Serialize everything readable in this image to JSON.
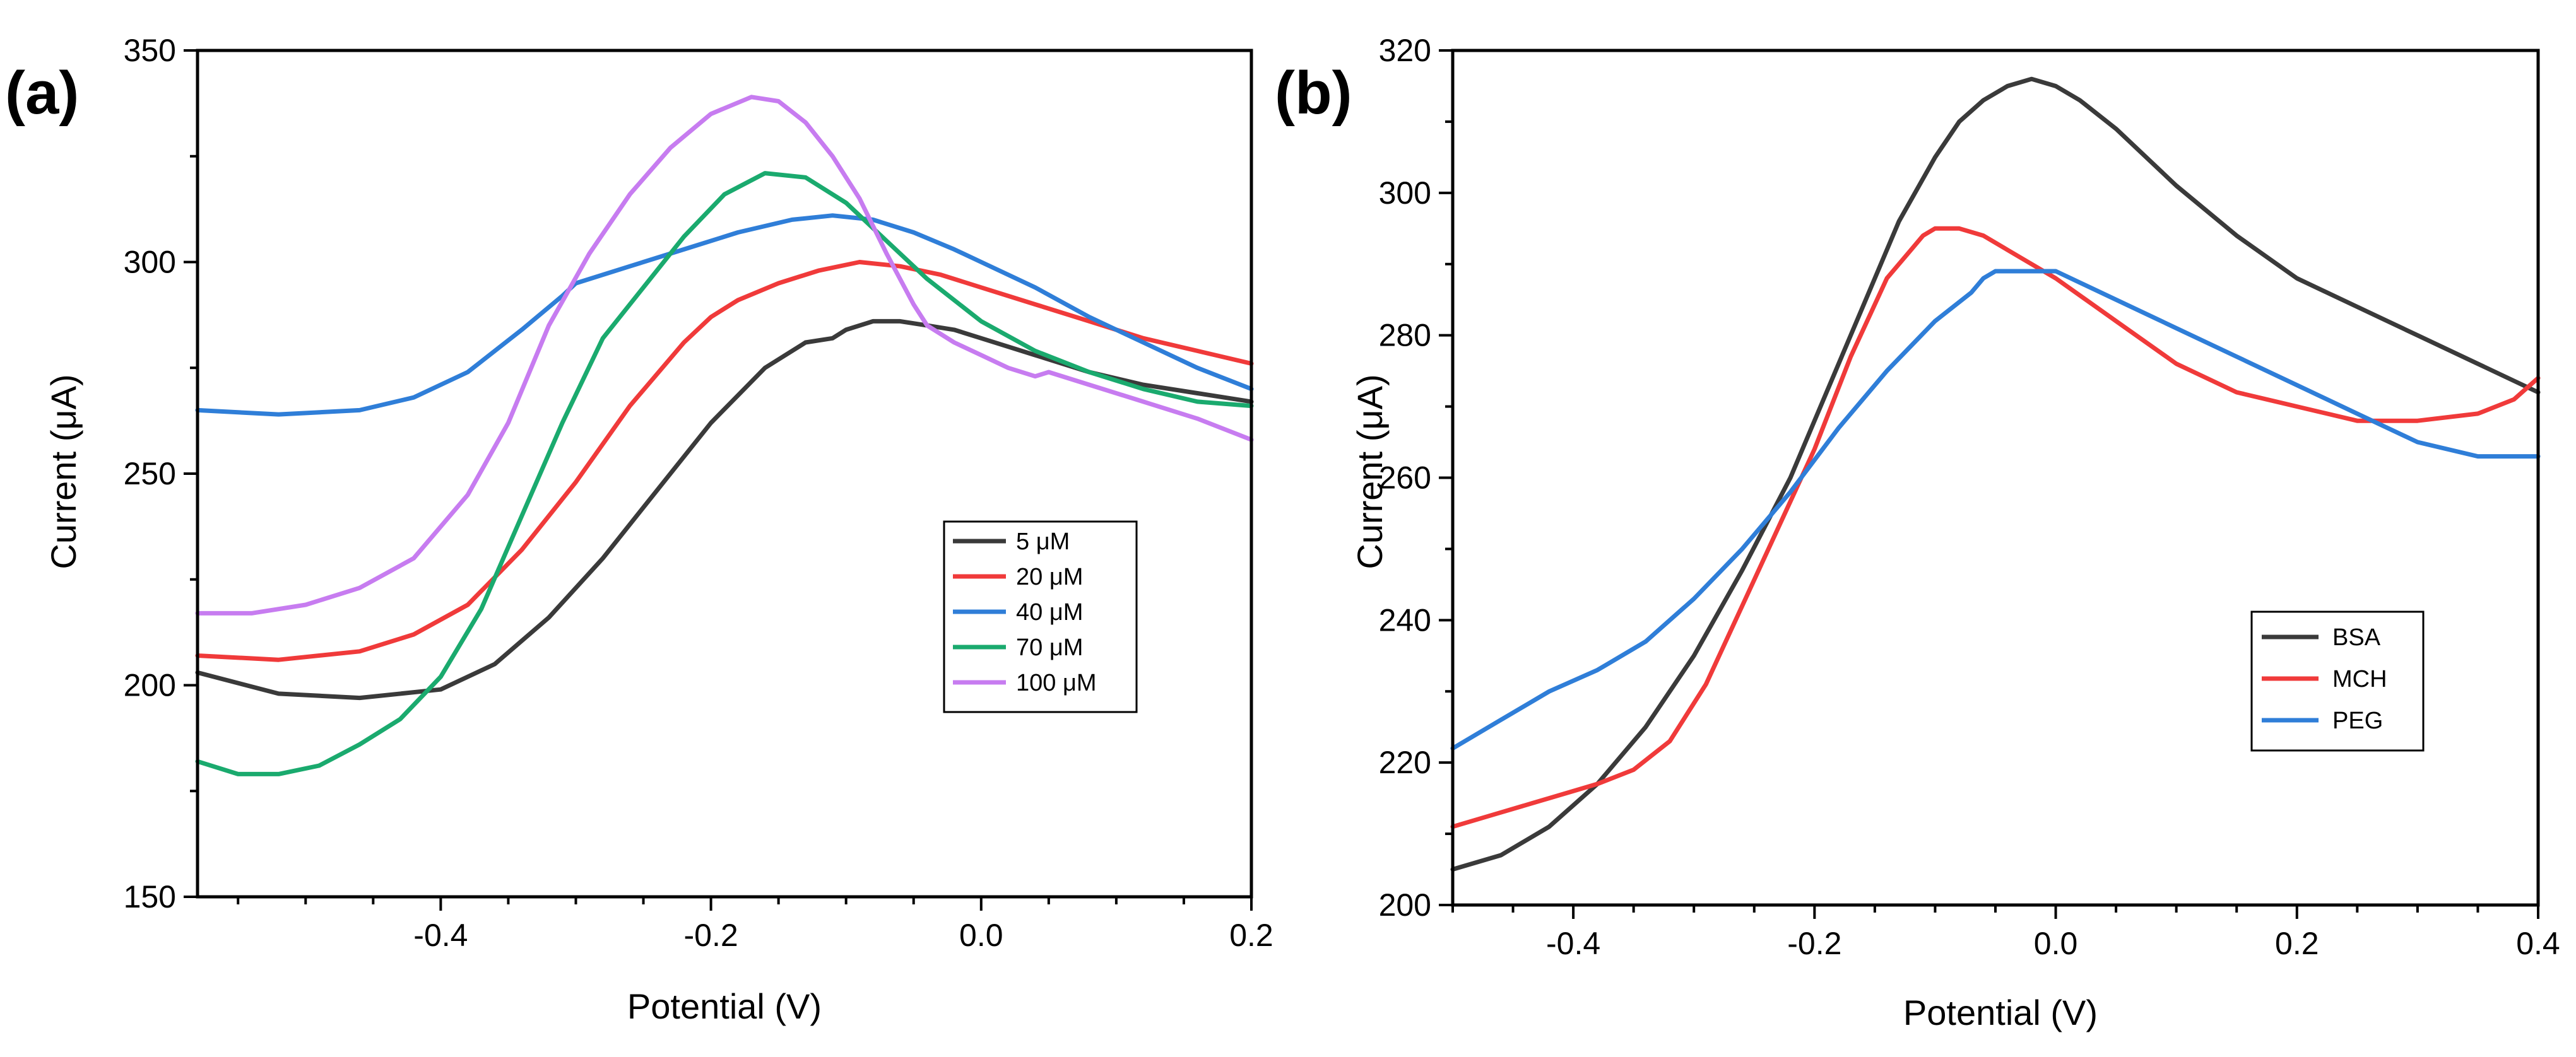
{
  "chart_data": [
    {
      "type": "line",
      "panel_label": "(a)",
      "title": "",
      "xlabel": "Potential (V)",
      "ylabel": "Current (μA)",
      "xlim": [
        -0.58,
        0.2
      ],
      "ylim": [
        150,
        350
      ],
      "xticks": [
        -0.4,
        -0.2,
        0.0,
        0.2
      ],
      "xtick_labels": [
        "-0.4",
        "-0.2",
        "0.0",
        "0.2"
      ],
      "yticks": [
        150,
        200,
        250,
        300,
        350
      ],
      "ytick_labels": [
        "150",
        "200",
        "250",
        "300",
        "350"
      ],
      "grid": false,
      "legend_position": "center-right",
      "series": [
        {
          "name": "5 μM",
          "color": "#3a3a3a",
          "x": [
            -0.58,
            -0.52,
            -0.46,
            -0.4,
            -0.36,
            -0.32,
            -0.28,
            -0.24,
            -0.2,
            -0.16,
            -0.13,
            -0.11,
            -0.1,
            -0.08,
            -0.06,
            -0.04,
            -0.02,
            0.0,
            0.04,
            0.08,
            0.12,
            0.16,
            0.2
          ],
          "values": [
            203,
            198,
            197,
            199,
            205,
            216,
            230,
            246,
            262,
            275,
            281,
            282,
            284,
            286,
            286,
            285,
            284,
            282,
            278,
            274,
            271,
            269,
            267
          ]
        },
        {
          "name": "20 μM",
          "color": "#f03a3a",
          "x": [
            -0.58,
            -0.52,
            -0.46,
            -0.42,
            -0.38,
            -0.34,
            -0.3,
            -0.26,
            -0.22,
            -0.2,
            -0.18,
            -0.15,
            -0.12,
            -0.09,
            -0.06,
            -0.03,
            0.0,
            0.04,
            0.08,
            0.12,
            0.16,
            0.2
          ],
          "values": [
            207,
            206,
            208,
            212,
            219,
            232,
            248,
            266,
            281,
            287,
            291,
            295,
            298,
            300,
            299,
            297,
            294,
            290,
            286,
            282,
            279,
            276
          ]
        },
        {
          "name": "40 μM",
          "color": "#2f7ed8",
          "x": [
            -0.58,
            -0.52,
            -0.46,
            -0.42,
            -0.38,
            -0.34,
            -0.31,
            -0.3,
            -0.26,
            -0.22,
            -0.18,
            -0.14,
            -0.11,
            -0.08,
            -0.05,
            -0.02,
            0.0,
            0.04,
            0.08,
            0.12,
            0.16,
            0.2
          ],
          "values": [
            265,
            264,
            265,
            268,
            274,
            284,
            292,
            295,
            299,
            303,
            307,
            310,
            311,
            310,
            307,
            303,
            300,
            294,
            287,
            281,
            275,
            270
          ]
        },
        {
          "name": "70 μM",
          "color": "#1aaa6e",
          "x": [
            -0.58,
            -0.55,
            -0.52,
            -0.49,
            -0.46,
            -0.43,
            -0.4,
            -0.37,
            -0.34,
            -0.31,
            -0.28,
            -0.25,
            -0.22,
            -0.19,
            -0.16,
            -0.13,
            -0.1,
            -0.07,
            -0.04,
            0.0,
            0.04,
            0.08,
            0.12,
            0.16,
            0.2
          ],
          "values": [
            182,
            179,
            179,
            181,
            186,
            192,
            202,
            218,
            240,
            262,
            282,
            294,
            306,
            316,
            321,
            320,
            314,
            305,
            296,
            286,
            279,
            274,
            270,
            267,
            266
          ]
        },
        {
          "name": "100 μM",
          "color": "#c77cf0",
          "x": [
            -0.58,
            -0.54,
            -0.5,
            -0.46,
            -0.42,
            -0.38,
            -0.35,
            -0.32,
            -0.29,
            -0.26,
            -0.23,
            -0.2,
            -0.17,
            -0.15,
            -0.13,
            -0.11,
            -0.09,
            -0.07,
            -0.05,
            -0.04,
            -0.02,
            0.0,
            0.02,
            0.04,
            0.05,
            0.08,
            0.12,
            0.16,
            0.2
          ],
          "values": [
            217,
            217,
            219,
            223,
            230,
            245,
            262,
            285,
            302,
            316,
            327,
            335,
            339,
            338,
            333,
            325,
            315,
            302,
            290,
            285,
            281,
            278,
            275,
            273,
            274,
            271,
            267,
            263,
            258
          ]
        }
      ]
    },
    {
      "type": "line",
      "panel_label": "(b)",
      "title": "",
      "xlabel": "Potential (V)",
      "ylabel": "Current (μA)",
      "xlim": [
        -0.5,
        0.4
      ],
      "ylim": [
        200,
        320
      ],
      "xticks": [
        -0.4,
        -0.2,
        0.0,
        0.2,
        0.4
      ],
      "xtick_labels": [
        "-0.4",
        "-0.2",
        "0.0",
        "0.2",
        "0.4"
      ],
      "yticks": [
        200,
        220,
        240,
        260,
        280,
        300,
        320
      ],
      "ytick_labels": [
        "200",
        "220",
        "240",
        "260",
        "280",
        "300",
        "320"
      ],
      "grid": false,
      "legend_position": "center-right",
      "series": [
        {
          "name": "BSA",
          "color": "#3a3a3a",
          "x": [
            -0.5,
            -0.46,
            -0.42,
            -0.38,
            -0.34,
            -0.3,
            -0.26,
            -0.22,
            -0.19,
            -0.16,
            -0.13,
            -0.1,
            -0.08,
            -0.06,
            -0.04,
            -0.02,
            0.0,
            0.02,
            0.05,
            0.1,
            0.15,
            0.2,
            0.25,
            0.3,
            0.35,
            0.4
          ],
          "values": [
            205,
            207,
            211,
            217,
            225,
            235,
            247,
            260,
            272,
            284,
            296,
            305,
            310,
            313,
            315,
            316,
            315,
            313,
            309,
            301,
            294,
            288,
            284,
            280,
            276,
            272
          ]
        },
        {
          "name": "MCH",
          "color": "#f03a3a",
          "x": [
            -0.5,
            -0.46,
            -0.42,
            -0.38,
            -0.35,
            -0.32,
            -0.29,
            -0.26,
            -0.23,
            -0.2,
            -0.17,
            -0.14,
            -0.12,
            -0.11,
            -0.1,
            -0.09,
            -0.08,
            -0.06,
            -0.04,
            -0.02,
            0.0,
            0.05,
            0.1,
            0.15,
            0.2,
            0.25,
            0.3,
            0.35,
            0.38,
            0.4
          ],
          "values": [
            211,
            213,
            215,
            217,
            219,
            223,
            231,
            242,
            253,
            264,
            277,
            288,
            292,
            294,
            295,
            295,
            295,
            294,
            292,
            290,
            288,
            282,
            276,
            272,
            270,
            268,
            268,
            269,
            271,
            274
          ]
        },
        {
          "name": "PEG",
          "color": "#2f7ed8",
          "x": [
            -0.5,
            -0.46,
            -0.42,
            -0.38,
            -0.34,
            -0.3,
            -0.26,
            -0.22,
            -0.18,
            -0.14,
            -0.1,
            -0.07,
            -0.06,
            -0.05,
            -0.03,
            0.0,
            0.05,
            0.1,
            0.15,
            0.2,
            0.25,
            0.3,
            0.35,
            0.4
          ],
          "values": [
            222,
            226,
            230,
            233,
            237,
            243,
            250,
            258,
            267,
            275,
            282,
            286,
            288,
            289,
            289,
            289,
            285,
            281,
            277,
            273,
            269,
            265,
            263,
            263
          ]
        }
      ]
    }
  ]
}
